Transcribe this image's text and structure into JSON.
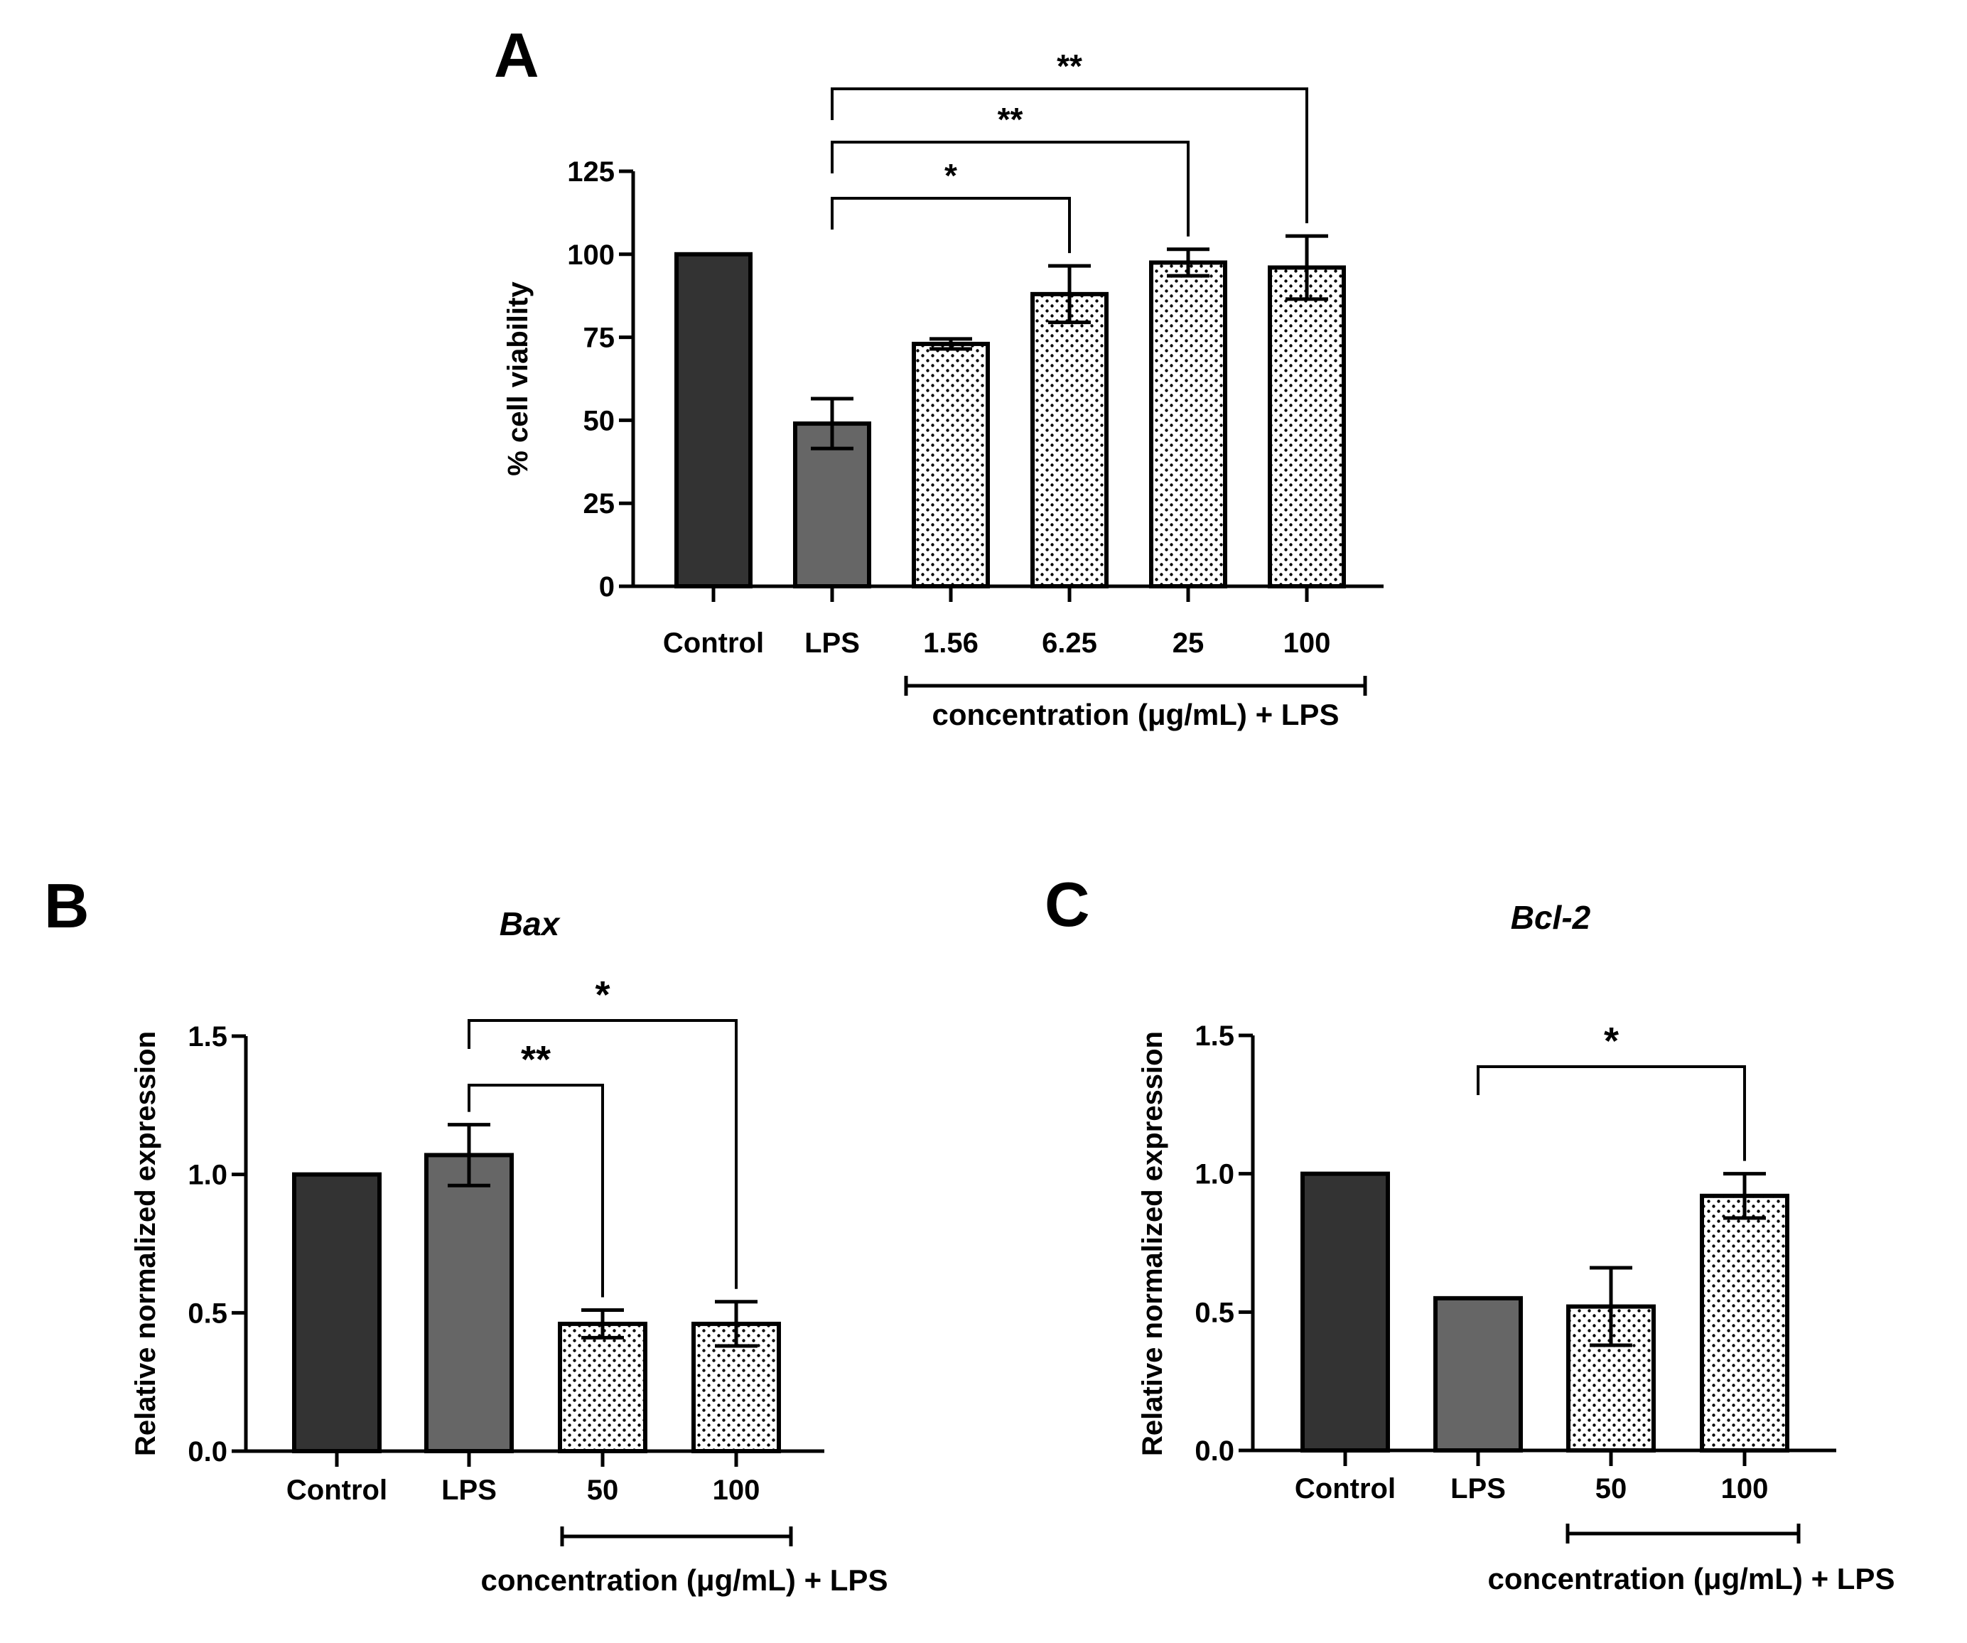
{
  "colors": {
    "control": "#333333",
    "lps": "#666666",
    "treated": "#ffffff",
    "dots": "#000000",
    "axis": "#000000"
  },
  "chart_data": [
    {
      "id": "A",
      "panel_label": "A",
      "type": "bar",
      "title": "",
      "ylabel": "% cell viability",
      "xlabel": "concentration (μg/mL) + LPS",
      "ylim": [
        0,
        125
      ],
      "yticks": [
        0,
        25,
        50,
        75,
        100,
        125
      ],
      "categories": [
        "Control",
        "LPS",
        "1.56",
        "6.25",
        "25",
        "100"
      ],
      "values": [
        100,
        49,
        73,
        88,
        97.5,
        96
      ],
      "errors": [
        0,
        7.5,
        1.5,
        8.5,
        4,
        9.5
      ],
      "fills": [
        "control",
        "lps",
        "treated",
        "treated",
        "treated",
        "treated"
      ],
      "concentration_group": [
        2,
        5
      ],
      "significance": [
        {
          "from": 1,
          "to": 3,
          "label": "*"
        },
        {
          "from": 1,
          "to": 4,
          "label": "**"
        },
        {
          "from": 1,
          "to": 5,
          "label": "**"
        }
      ]
    },
    {
      "id": "B",
      "panel_label": "B",
      "type": "bar",
      "title": "Bax",
      "ylabel": "Relative normalized expression",
      "xlabel": "concentration (μg/mL) + LPS",
      "ylim": [
        0,
        1.5
      ],
      "yticks": [
        "0.0",
        "0.5",
        "1.0",
        "1.5"
      ],
      "categories": [
        "Control",
        "LPS",
        "50",
        "100"
      ],
      "values": [
        1.0,
        1.07,
        0.46,
        0.46
      ],
      "errors": [
        0,
        0.11,
        0.05,
        0.08
      ],
      "fills": [
        "control",
        "lps",
        "treated",
        "treated"
      ],
      "concentration_group": [
        2,
        3
      ],
      "significance": [
        {
          "from": 1,
          "to": 2,
          "label": "**"
        },
        {
          "from": 1,
          "to": 3,
          "label": "*"
        }
      ]
    },
    {
      "id": "C",
      "panel_label": "C",
      "type": "bar",
      "title": "Bcl-2",
      "ylabel": "Relative normalized expression",
      "xlabel": "concentration (μg/mL) + LPS",
      "ylim": [
        0,
        1.5
      ],
      "yticks": [
        "0.0",
        "0.5",
        "1.0",
        "1.5"
      ],
      "categories": [
        "Control",
        "LPS",
        "50",
        "100"
      ],
      "values": [
        1.0,
        0.55,
        0.52,
        0.92
      ],
      "errors": [
        0,
        0,
        0.14,
        0.08
      ],
      "fills": [
        "control",
        "lps",
        "treated",
        "treated"
      ],
      "concentration_group": [
        2,
        3
      ],
      "significance": [
        {
          "from": 1,
          "to": 3,
          "label": "*"
        }
      ]
    }
  ]
}
